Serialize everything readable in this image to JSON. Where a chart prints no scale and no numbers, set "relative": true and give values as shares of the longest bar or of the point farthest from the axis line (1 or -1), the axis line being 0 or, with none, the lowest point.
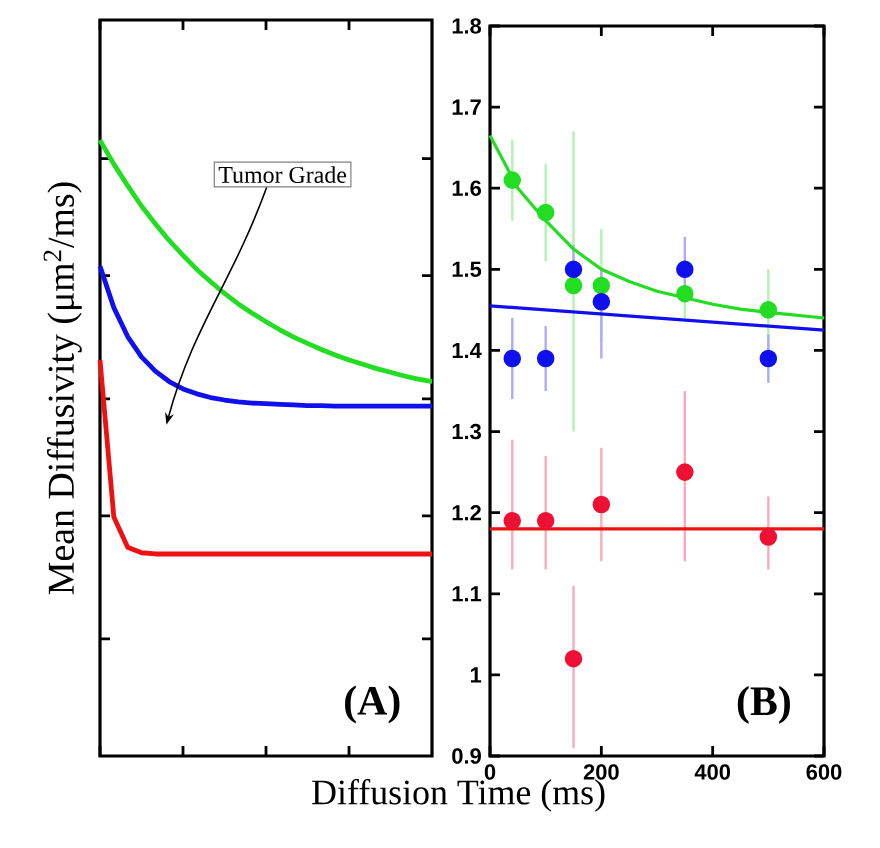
{
  "chart_data": [
    {
      "type": "line",
      "relative": true,
      "xlabel": "Diffusion Time (ms)",
      "ylabel": "Mean Diffusivity (μm$^{2}$/ms)",
      "annotations": [
        "Tumor Grade",
        "(A)"
      ],
      "categories": [
        null,
        null,
        null,
        null,
        null,
        null,
        null,
        null,
        null,
        null,
        null,
        null,
        null,
        null,
        null,
        null,
        null,
        null,
        null,
        null,
        null,
        null,
        null,
        null,
        null
      ],
      "series": [
        {
          "color": "#22dd22",
          "values": [
            1.0,
            0.961,
            0.926,
            0.893,
            0.864,
            0.837,
            0.813,
            0.79,
            0.77,
            0.751,
            0.734,
            0.719,
            0.705,
            0.692,
            0.68,
            0.67,
            0.66,
            0.651,
            0.643,
            0.636,
            0.629,
            0.623,
            0.617,
            0.612,
            0.608
          ]
        },
        {
          "color": "#1010ee",
          "values": [
            0.795,
            0.728,
            0.681,
            0.648,
            0.625,
            0.608,
            0.596,
            0.588,
            0.582,
            0.578,
            0.575,
            0.573,
            0.572,
            0.571,
            0.57,
            0.569,
            0.569,
            0.568,
            0.568,
            0.568,
            0.568,
            0.568,
            0.568,
            0.568,
            0.568
          ]
        },
        {
          "color": "#ee1111",
          "values": [
            0.643,
            0.388,
            0.339,
            0.33,
            0.328,
            0.328,
            0.328,
            0.328,
            0.328,
            0.328,
            0.328,
            0.328,
            0.328,
            0.328,
            0.328,
            0.328,
            0.328,
            0.328,
            0.328,
            0.328,
            0.328,
            0.328,
            0.328,
            0.328,
            0.328
          ]
        }
      ]
    },
    {
      "type": "scatter",
      "annotations": [
        "(B)"
      ],
      "xlim": [
        0,
        600
      ],
      "xticks": [
        0,
        200,
        400,
        600
      ],
      "ylim": [
        0.9,
        1.8
      ],
      "yticks": [
        0.9,
        1,
        1.1,
        1.2,
        1.3,
        1.4,
        1.5,
        1.6,
        1.7,
        1.8
      ],
      "x": [
        40,
        100,
        150,
        200,
        350,
        500
      ],
      "series": [
        {
          "type": "scatter",
          "marker": "circle",
          "color": "#22dd22",
          "values": [
            1.61,
            1.57,
            1.48,
            1.48,
            1.47,
            1.45
          ],
          "errors": [
            0.05,
            0.06,
            [
              1.3,
              1.67
            ],
            0.07,
            0.03,
            0.05
          ]
        },
        {
          "type": "scatter",
          "marker": "circle",
          "color": "#ee1133",
          "values": [
            1.19,
            1.19,
            1.02,
            1.21,
            1.25,
            1.17
          ],
          "errors": [
            [
              1.13,
              1.29
            ],
            [
              1.13,
              1.27
            ],
            [
              0.91,
              1.11
            ],
            [
              1.14,
              1.28
            ],
            [
              1.14,
              1.35
            ],
            [
              1.13,
              1.22
            ]
          ]
        },
        {
          "type": "scatter",
          "marker": "circle",
          "color": "#1010ee",
          "values": [
            1.39,
            1.39,
            1.5,
            1.46,
            1.5,
            1.39
          ],
          "errors": [
            0.05,
            0.04,
            0.03,
            [
              1.39,
              1.5
            ],
            0.04,
            0.03
          ]
        },
        {
          "type": "line",
          "marker": "none",
          "color": "#22dd22",
          "x": [
            0,
            50,
            100,
            150,
            200,
            250,
            300,
            350,
            400,
            450,
            500,
            600
          ],
          "values": [
            1.665,
            1.6,
            1.56,
            1.525,
            1.5,
            1.485,
            1.473,
            1.465,
            1.457,
            1.451,
            1.447,
            1.44
          ]
        },
        {
          "type": "line",
          "marker": "none",
          "color": "#1010ee",
          "x": [
            0,
            600
          ],
          "values": [
            1.455,
            1.425
          ]
        },
        {
          "type": "line",
          "marker": "none",
          "color": "#ee1111",
          "x": [
            0,
            600
          ],
          "values": [
            1.18,
            1.18
          ]
        }
      ]
    }
  ]
}
